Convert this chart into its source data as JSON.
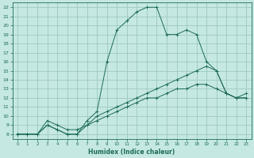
{
  "xlabel": "Humidex (Indice chaleur)",
  "bg_color": "#c5e8e2",
  "grid_color": "#9dc8c0",
  "line_color": "#1e6b5a",
  "xlim": [
    -0.5,
    23.5
  ],
  "ylim": [
    7.5,
    22.5
  ],
  "xticks": [
    0,
    1,
    2,
    3,
    4,
    5,
    6,
    7,
    8,
    9,
    10,
    11,
    12,
    13,
    14,
    15,
    16,
    17,
    18,
    19,
    20,
    21,
    22,
    23
  ],
  "yticks": [
    8,
    9,
    10,
    11,
    12,
    13,
    14,
    15,
    16,
    17,
    18,
    19,
    20,
    21,
    22
  ],
  "line_curvy_x": [
    0,
    1,
    2,
    3,
    4,
    5,
    6,
    7,
    8,
    9,
    10,
    11,
    12,
    13,
    14,
    15,
    16,
    17,
    18,
    19,
    20,
    21,
    22,
    23
  ],
  "line_curvy_y": [
    8,
    8,
    8,
    9,
    8.5,
    8,
    8,
    9.5,
    10.5,
    16,
    19.5,
    20.5,
    21.5,
    22,
    22,
    19,
    19,
    19.5,
    19,
    16,
    15,
    12.5,
    12,
    12
  ],
  "line_mid_x": [
    0,
    1,
    2,
    3,
    4,
    5,
    6,
    7,
    8,
    9,
    10,
    11,
    12,
    13,
    14,
    15,
    16,
    17,
    18,
    19,
    20,
    21,
    22,
    23
  ],
  "line_mid_y": [
    8,
    8,
    8,
    9.5,
    9,
    8.5,
    8.5,
    9,
    10,
    10.5,
    11,
    11.5,
    12,
    12.5,
    13,
    13.5,
    14,
    14.5,
    15,
    15.5,
    15,
    12.5,
    12,
    12
  ],
  "line_low_x": [
    0,
    1,
    2,
    3,
    4,
    5,
    6,
    7,
    8,
    9,
    10,
    11,
    12,
    13,
    14,
    15,
    16,
    17,
    18,
    19,
    20,
    21,
    22,
    23
  ],
  "line_low_y": [
    8,
    8,
    8,
    9,
    8.5,
    8,
    8,
    9,
    9.5,
    10,
    10.5,
    11,
    11.5,
    12,
    12,
    12.5,
    13,
    13,
    13.5,
    13.5,
    13,
    12.5,
    12,
    12.5
  ]
}
